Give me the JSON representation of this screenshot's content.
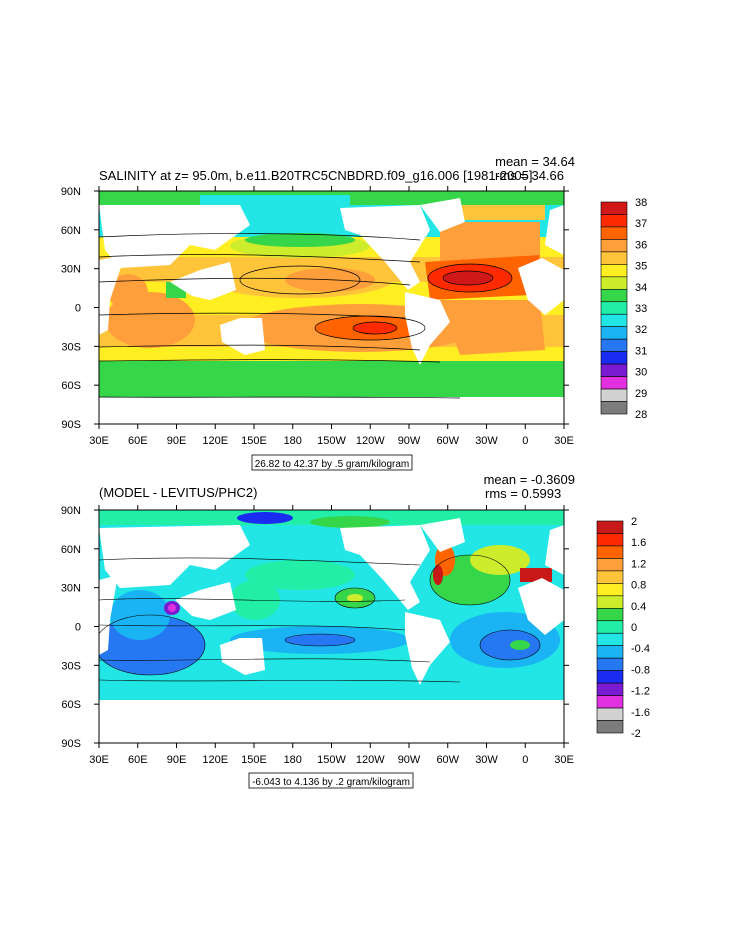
{
  "chart_data": [
    {
      "type": "heatmap",
      "title": "SALINITY at z=  95.0m, b.e11.B20TRC5CNBDRD.f09_g16.006 [1981-2005]",
      "stats": [
        "mean = 34.64",
        "rms = 34.66"
      ],
      "x_ticks": [
        "30E",
        "60E",
        "90E",
        "120E",
        "150E",
        "180",
        "150W",
        "120W",
        "90W",
        "60W",
        "30W",
        "0",
        "30E"
      ],
      "y_ticks": [
        "90N",
        "60N",
        "30N",
        "0",
        "30S",
        "60S",
        "90S"
      ],
      "contour_info": "26.82 to 42.37 by .5 gram/kilogram",
      "colorbar_labels": [
        "38",
        "37",
        "36",
        "35",
        "34",
        "33",
        "32",
        "31",
        "30",
        "29",
        "28"
      ],
      "colorbar_colors": [
        "#d01818",
        "#ff2a00",
        "#ff6400",
        "#ff9f3c",
        "#ffc43a",
        "#ffee22",
        "#ccec2c",
        "#36d64a",
        "#22eea8",
        "#22e6e6",
        "#1ab4f4",
        "#2678f2",
        "#1a2cf2",
        "#7a1ad2",
        "#e030e0",
        "#d2d2d2",
        "#7c7c7c"
      ]
    },
    {
      "type": "heatmap",
      "title": "(MODEL - LEVITUS/PHC2)",
      "stats": [
        "mean = -0.3609",
        "rms = 0.5993"
      ],
      "x_ticks": [
        "30E",
        "60E",
        "90E",
        "120E",
        "150E",
        "180",
        "150W",
        "120W",
        "90W",
        "60W",
        "30W",
        "0",
        "30E"
      ],
      "y_ticks": [
        "90N",
        "60N",
        "30N",
        "0",
        "30S",
        "60S",
        "90S"
      ],
      "contour_info": "-6.043 to 4.136 by .2 gram/kilogram",
      "colorbar_labels": [
        "2",
        "1.6",
        "1.2",
        "0.8",
        "0.4",
        "0",
        "-0.4",
        "-0.8",
        "-1.2",
        "-1.6",
        "-2"
      ],
      "colorbar_colors": [
        "#c81818",
        "#ff2a00",
        "#ff6400",
        "#ff9f3c",
        "#ffc43a",
        "#ffee22",
        "#ccec2c",
        "#36d64a",
        "#22eea8",
        "#22e6e6",
        "#1ab4f4",
        "#2678f2",
        "#1a2cf2",
        "#7a1ad2",
        "#e030e0",
        "#d2d2d2",
        "#7c7c7c"
      ]
    }
  ]
}
